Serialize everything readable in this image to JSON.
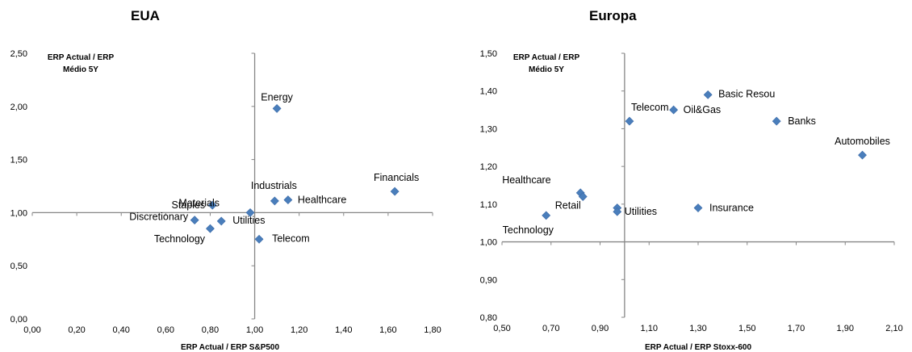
{
  "chart_data": [
    {
      "type": "scatter",
      "title": "EUA",
      "xlabel": "ERP Actual / ERP S&P500",
      "ylabel": [
        "ERP Actual / ERP",
        "Médio 5Y"
      ],
      "xlim": [
        0,
        1.8
      ],
      "ylim": [
        0,
        2.5
      ],
      "xticks": [
        "0,00",
        "0,20",
        "0,40",
        "0,60",
        "0,80",
        "1,00",
        "1,20",
        "1,40",
        "1,60",
        "1,80"
      ],
      "yticks": [
        "0,00",
        "0,50",
        "1,00",
        "1,50",
        "2,00",
        "2,50"
      ],
      "cross_at": {
        "x": 1.0,
        "y": 1.0
      },
      "grid": false,
      "marker_color": "#4a7ebb",
      "points": [
        {
          "label": "Energy",
          "x": 1.1,
          "y": 1.98
        },
        {
          "label": "Financials",
          "x": 1.63,
          "y": 1.2
        },
        {
          "label": "Industrials",
          "x": 1.09,
          "y": 1.11
        },
        {
          "label": "Healthcare",
          "x": 1.15,
          "y": 1.12
        },
        {
          "label": "Staples",
          "x": 0.81,
          "y": 1.07
        },
        {
          "label": "Materials",
          "x": 0.98,
          "y": 1.0
        },
        {
          "label": "Discretionary",
          "x": 0.73,
          "y": 0.93
        },
        {
          "label": "Utilities",
          "x": 0.85,
          "y": 0.92
        },
        {
          "label": "Technology",
          "x": 0.8,
          "y": 0.85
        },
        {
          "label": "Telecom",
          "x": 1.02,
          "y": 0.75
        }
      ]
    },
    {
      "type": "scatter",
      "title": "Europa",
      "xlabel": "ERP Actual / ERP Stoxx-600",
      "ylabel": [
        "ERP Actual / ERP",
        "Médio 5Y"
      ],
      "xlim": [
        0.5,
        2.1
      ],
      "ylim": [
        0.8,
        1.5
      ],
      "xticks": [
        "0,50",
        "0,70",
        "0,90",
        "1,10",
        "1,30",
        "1,50",
        "1,70",
        "1,90",
        "2,10"
      ],
      "yticks": [
        "0,80",
        "0,90",
        "1,00",
        "1,10",
        "1,20",
        "1,30",
        "1,40",
        "1,50"
      ],
      "cross_at": {
        "x": 1.0,
        "y": 1.0
      },
      "grid": false,
      "marker_color": "#4a7ebb",
      "points": [
        {
          "label": "Basic Resou",
          "x": 1.34,
          "y": 1.39
        },
        {
          "label": "Oil&Gas",
          "x": 1.2,
          "y": 1.35
        },
        {
          "label": "Telecom",
          "x": 1.02,
          "y": 1.32
        },
        {
          "label": "Banks",
          "x": 1.62,
          "y": 1.32
        },
        {
          "label": "Automobiles",
          "x": 1.97,
          "y": 1.23
        },
        {
          "label": "Healthcare",
          "x": 0.82,
          "y": 1.13
        },
        {
          "label": "",
          "x": 0.83,
          "y": 1.12
        },
        {
          "label": "Retail",
          "x": 0.97,
          "y": 1.09
        },
        {
          "label": "Utilities",
          "x": 0.97,
          "y": 1.08
        },
        {
          "label": "Insurance",
          "x": 1.3,
          "y": 1.09
        },
        {
          "label": "Technology",
          "x": 0.68,
          "y": 1.07
        }
      ]
    }
  ]
}
